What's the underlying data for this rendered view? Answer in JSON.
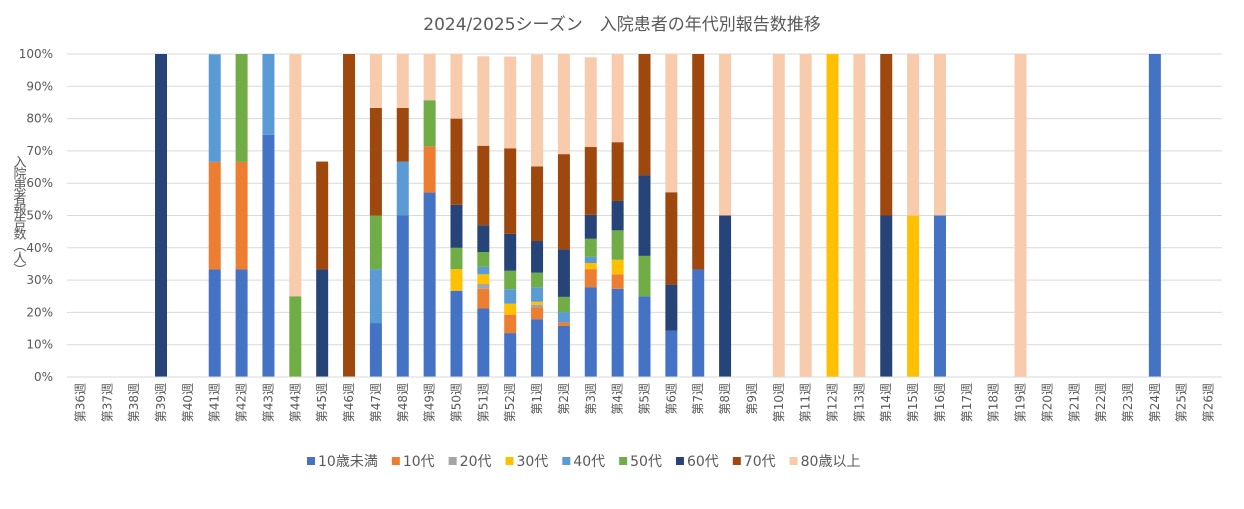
{
  "chart_data": {
    "type": "bar",
    "stacked": "percent",
    "title": "2024/2025シーズン　入院患者の年代別報告数推移",
    "ylabel": "入院患者報告数（人）",
    "xlabel": "",
    "ylim": [
      0,
      100
    ],
    "yticks": [
      "0%",
      "10%",
      "20%",
      "30%",
      "40%",
      "50%",
      "60%",
      "70%",
      "80%",
      "90%",
      "100%"
    ],
    "grid": true,
    "legend_position": "bottom",
    "categories": [
      "第36週",
      "第37週",
      "第38週",
      "第39週",
      "第40週",
      "第41週",
      "第42週",
      "第43週",
      "第44週",
      "第45週",
      "第46週",
      "第47週",
      "第48週",
      "第49週",
      "第50週",
      "第51週",
      "第52週",
      "第1週",
      "第2週",
      "第3週",
      "第4週",
      "第5週",
      "第6週",
      "第7週",
      "第8週",
      "第9週",
      "第10週",
      "第11週",
      "第12週",
      "第13週",
      "第14週",
      "第15週",
      "第16週",
      "第17週",
      "第18週",
      "第19週",
      "第20週",
      "第21週",
      "第22週",
      "第23週",
      "第24週",
      "第25週",
      "第26週"
    ],
    "series": [
      {
        "name": "10歳未満",
        "color": "#4472C4",
        "values": [
          0,
          0,
          0,
          0,
          0,
          33.3,
          33.3,
          75,
          0,
          0,
          0,
          16.7,
          50,
          57.1,
          26.7,
          21.2,
          13.6,
          17.9,
          15.8,
          27.8,
          27.3,
          25,
          14.3,
          33.3,
          0,
          0,
          0,
          0,
          0,
          0,
          0,
          0,
          50,
          0,
          0,
          0,
          0,
          0,
          0,
          0,
          100,
          0,
          0
        ]
      },
      {
        "name": "10代",
        "color": "#ED7D31",
        "values": [
          0,
          0,
          0,
          0,
          0,
          33.3,
          33.3,
          0,
          0,
          0,
          0,
          0,
          0,
          14.3,
          0,
          6.1,
          5.7,
          3.6,
          1.1,
          5.6,
          4.5,
          0,
          0,
          0,
          0,
          0,
          0,
          0,
          0,
          0,
          0,
          0,
          0,
          0,
          0,
          0,
          0,
          0,
          0,
          0,
          0,
          0,
          0
        ]
      },
      {
        "name": "20代",
        "color": "#A5A5A5",
        "values": [
          0,
          0,
          0,
          0,
          0,
          0,
          0,
          0,
          0,
          0,
          0,
          0,
          0,
          0,
          0,
          1.5,
          0,
          0.9,
          0,
          0,
          0,
          0,
          0,
          0,
          0,
          0,
          0,
          0,
          0,
          0,
          0,
          0,
          0,
          0,
          0,
          0,
          0,
          0,
          0,
          0,
          0,
          0,
          0
        ]
      },
      {
        "name": "30代",
        "color": "#FFC000",
        "values": [
          0,
          0,
          0,
          0,
          0,
          0,
          0,
          0,
          0,
          0,
          0,
          0,
          0,
          0,
          6.7,
          3.0,
          3.4,
          0.9,
          0,
          1.9,
          4.5,
          0,
          0,
          0,
          0,
          0,
          0,
          0,
          100,
          0,
          0,
          50,
          0,
          0,
          0,
          0,
          0,
          0,
          0,
          0,
          0,
          0,
          0
        ]
      },
      {
        "name": "40代",
        "color": "#5B9BD5",
        "values": [
          0,
          0,
          0,
          0,
          0,
          33.3,
          0,
          25,
          0,
          0,
          0,
          16.7,
          16.7,
          0,
          0,
          2.3,
          4.5,
          4.5,
          3.2,
          1.9,
          0,
          0,
          0,
          0,
          0,
          0,
          0,
          0,
          0,
          0,
          0,
          0,
          0,
          0,
          0,
          0,
          0,
          0,
          0,
          0,
          0,
          0,
          0
        ]
      },
      {
        "name": "50代",
        "color": "#70AD47",
        "values": [
          0,
          0,
          0,
          0,
          0,
          0,
          33.4,
          0,
          25,
          0,
          0,
          16.6,
          0,
          14.3,
          6.6,
          4.6,
          5.7,
          4.5,
          4.7,
          5.6,
          9.1,
          12.5,
          0,
          0,
          0,
          0,
          0,
          0,
          0,
          0,
          0,
          0,
          0,
          0,
          0,
          0,
          0,
          0,
          0,
          0,
          0,
          0,
          0
        ]
      },
      {
        "name": "60代",
        "color": "#264478",
        "values": [
          0,
          0,
          0,
          100,
          0,
          0,
          0,
          0,
          0,
          33.3,
          0,
          0,
          0,
          0,
          13.3,
          8.3,
          11.4,
          9.8,
          14.7,
          7.4,
          9.1,
          25,
          14.3,
          0,
          50,
          0,
          0,
          0,
          0,
          0,
          50,
          0,
          0,
          0,
          0,
          0,
          0,
          0,
          0,
          0,
          0,
          0,
          0
        ]
      },
      {
        "name": "70代",
        "color": "#9E480E",
        "values": [
          0,
          0,
          0,
          0,
          0,
          0,
          0,
          0,
          0,
          33.4,
          100,
          33.3,
          16.6,
          0,
          26.7,
          24.6,
          26.5,
          23.1,
          29.5,
          21.0,
          18.2,
          37.5,
          28.6,
          66.7,
          0,
          0,
          0,
          0,
          0,
          0,
          50,
          0,
          0,
          0,
          0,
          0,
          0,
          0,
          0,
          0,
          0,
          0,
          0
        ]
      },
      {
        "name": "80歳以上",
        "color": "#F8CBAD",
        "values": [
          0,
          0,
          0,
          0,
          0,
          0,
          0,
          0,
          75,
          0,
          0,
          16.7,
          16.7,
          14.3,
          20,
          27.7,
          28.4,
          34.6,
          31,
          27.8,
          27.3,
          0,
          42.8,
          0,
          50,
          0,
          100,
          100,
          0,
          100,
          0,
          50,
          50,
          0,
          0,
          100,
          0,
          0,
          0,
          0,
          0,
          0,
          0
        ]
      }
    ]
  }
}
